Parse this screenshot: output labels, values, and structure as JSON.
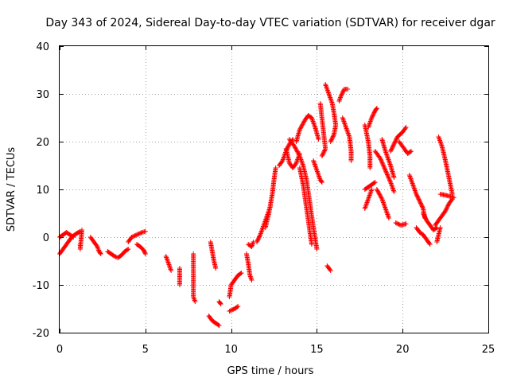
{
  "chart_data": {
    "type": "scatter",
    "title": "Day 343 of 2024, Sidereal Day-to-day VTEC variation (SDTVAR) for receiver dgar",
    "xlabel": "GPS time / hours",
    "ylabel": "SDTVAR / TECUs",
    "xlim": [
      0,
      25
    ],
    "ylim": [
      -20,
      40
    ],
    "xticks": [
      "0",
      "5",
      "10",
      "15",
      "20",
      "25"
    ],
    "yticks": [
      "-20",
      "-10",
      "0",
      "10",
      "20",
      "30",
      "40"
    ],
    "grid": true,
    "marker": "+",
    "colors": {
      "series": "#ff0000",
      "grid": "#a0a0a0",
      "axis": "#000000"
    },
    "series": [
      {
        "name": "SDTVAR",
        "segments": [
          [
            [
              0.0,
              -3.5
            ],
            [
              0.2,
              -2.5
            ],
            [
              0.4,
              -1.5
            ],
            [
              0.6,
              -0.5
            ],
            [
              0.8,
              0.3
            ],
            [
              1.0,
              0.8
            ],
            [
              1.2,
              1.2
            ]
          ],
          [
            [
              0.0,
              0.0
            ],
            [
              0.2,
              0.5
            ],
            [
              0.4,
              1.0
            ],
            [
              0.6,
              0.5
            ],
            [
              0.8,
              0.0
            ]
          ],
          [
            [
              1.2,
              -1.5
            ],
            [
              1.2,
              -2.5
            ],
            [
              1.3,
              1.5
            ]
          ],
          [
            [
              1.8,
              0.0
            ],
            [
              2.0,
              -1.0
            ],
            [
              2.2,
              -2.0
            ],
            [
              2.3,
              -3.0
            ],
            [
              2.4,
              -3.5
            ]
          ],
          [
            [
              2.8,
              -3.0
            ],
            [
              3.0,
              -3.5
            ],
            [
              3.2,
              -4.0
            ],
            [
              3.4,
              -4.3
            ],
            [
              3.6,
              -3.8
            ],
            [
              3.8,
              -3.0
            ],
            [
              4.0,
              -2.5
            ]
          ],
          [
            [
              4.0,
              -1.0
            ],
            [
              4.2,
              0.0
            ],
            [
              4.5,
              0.5
            ],
            [
              4.8,
              1.0
            ],
            [
              5.0,
              1.2
            ]
          ],
          [
            [
              4.5,
              -1.5
            ],
            [
              4.7,
              -2.0
            ],
            [
              4.9,
              -2.7
            ],
            [
              5.0,
              -3.5
            ]
          ],
          [
            [
              6.2,
              -4.0
            ],
            [
              6.3,
              -5.0
            ],
            [
              6.4,
              -6.0
            ],
            [
              6.5,
              -7.0
            ]
          ],
          [
            [
              7.0,
              -6.5
            ],
            [
              7.0,
              -10.0
            ]
          ],
          [
            [
              7.8,
              -3.5
            ],
            [
              7.8,
              -12.5
            ],
            [
              7.9,
              -13.5
            ]
          ],
          [
            [
              8.7,
              -16.5
            ],
            [
              8.9,
              -17.5
            ],
            [
              9.1,
              -18.0
            ],
            [
              9.3,
              -18.5
            ]
          ],
          [
            [
              8.8,
              -1.0
            ],
            [
              8.9,
              -3.0
            ],
            [
              9.0,
              -5.0
            ],
            [
              9.1,
              -6.5
            ]
          ],
          [
            [
              9.3,
              -13.5
            ],
            [
              9.4,
              -14.0
            ]
          ],
          [
            [
              9.9,
              -15.5
            ],
            [
              10.2,
              -15.0
            ],
            [
              10.4,
              -14.5
            ]
          ],
          [
            [
              9.9,
              -12.5
            ],
            [
              10.0,
              -10.0
            ],
            [
              10.2,
              -9.0
            ],
            [
              10.4,
              -8.0
            ],
            [
              10.6,
              -7.5
            ]
          ],
          [
            [
              10.9,
              -3.5
            ],
            [
              11.0,
              -5.5
            ],
            [
              11.1,
              -8.0
            ],
            [
              11.2,
              -9.0
            ]
          ],
          [
            [
              11.0,
              -1.5
            ],
            [
              11.2,
              -2.0
            ],
            [
              11.3,
              -1.0
            ]
          ],
          [
            [
              11.5,
              -1.0
            ],
            [
              11.7,
              0.5
            ],
            [
              11.9,
              2.5
            ],
            [
              12.1,
              4.5
            ],
            [
              12.3,
              6.5
            ]
          ],
          [
            [
              12.0,
              2.0
            ],
            [
              12.2,
              5.0
            ],
            [
              12.4,
              9.0
            ],
            [
              12.5,
              12.0
            ],
            [
              12.6,
              14.5
            ]
          ],
          [
            [
              12.8,
              15.0
            ],
            [
              13.0,
              16.0
            ],
            [
              13.2,
              18.0
            ],
            [
              13.4,
              19.5
            ],
            [
              13.6,
              20.5
            ]
          ],
          [
            [
              13.2,
              18.5
            ],
            [
              13.4,
              15.5
            ],
            [
              13.6,
              14.5
            ],
            [
              13.8,
              15.5
            ],
            [
              14.0,
              17.5
            ]
          ],
          [
            [
              13.4,
              20.5
            ],
            [
              13.7,
              19.0
            ],
            [
              14.0,
              17.0
            ],
            [
              14.2,
              15.0
            ],
            [
              14.4,
              12.0
            ],
            [
              14.6,
              7.0
            ],
            [
              14.8,
              2.0
            ],
            [
              15.0,
              -2.5
            ]
          ],
          [
            [
              14.0,
              14.5
            ],
            [
              14.2,
              11.0
            ],
            [
              14.4,
              6.0
            ],
            [
              14.6,
              1.0
            ],
            [
              14.7,
              -1.5
            ]
          ],
          [
            [
              13.8,
              20.0
            ],
            [
              14.0,
              22.5
            ],
            [
              14.3,
              24.5
            ],
            [
              14.5,
              25.5
            ],
            [
              14.7,
              25.0
            ],
            [
              14.9,
              23.0
            ],
            [
              15.1,
              20.5
            ]
          ],
          [
            [
              14.8,
              16.0
            ],
            [
              15.0,
              14.0
            ],
            [
              15.2,
              12.0
            ],
            [
              15.3,
              11.5
            ]
          ],
          [
            [
              15.3,
              17.0
            ],
            [
              15.5,
              18.5
            ],
            [
              15.2,
              28.0
            ]
          ],
          [
            [
              15.5,
              32.0
            ],
            [
              15.7,
              30.0
            ],
            [
              15.9,
              28.0
            ],
            [
              16.0,
              26.0
            ],
            [
              16.1,
              23.5
            ],
            [
              16.0,
              21.5
            ],
            [
              15.8,
              20.0
            ]
          ],
          [
            [
              15.6,
              -6.0
            ],
            [
              15.8,
              -7.0
            ]
          ],
          [
            [
              16.3,
              28.5
            ],
            [
              16.4,
              29.5
            ],
            [
              16.6,
              31.0
            ],
            [
              16.8,
              31.0
            ]
          ],
          [
            [
              16.5,
              25.0
            ],
            [
              16.7,
              23.0
            ],
            [
              16.9,
              21.0
            ],
            [
              17.0,
              18.0
            ],
            [
              17.0,
              16.0
            ]
          ],
          [
            [
              17.8,
              23.5
            ],
            [
              18.0,
              20.0
            ],
            [
              18.1,
              17.0
            ],
            [
              18.1,
              14.5
            ]
          ],
          [
            [
              17.8,
              10.0
            ],
            [
              18.0,
              10.5
            ],
            [
              18.2,
              11.0
            ],
            [
              18.4,
              11.5
            ]
          ],
          [
            [
              18.0,
              23.0
            ],
            [
              18.2,
              25.0
            ],
            [
              18.4,
              26.5
            ],
            [
              18.5,
              27.0
            ]
          ],
          [
            [
              17.8,
              6.0
            ],
            [
              18.0,
              8.0
            ],
            [
              18.2,
              10.0
            ]
          ],
          [
            [
              18.5,
              10.0
            ],
            [
              18.8,
              8.0
            ],
            [
              19.0,
              6.0
            ],
            [
              19.2,
              4.0
            ]
          ],
          [
            [
              18.4,
              18.0
            ],
            [
              18.7,
              16.5
            ],
            [
              19.0,
              14.0
            ],
            [
              19.3,
              11.5
            ],
            [
              19.5,
              9.5
            ]
          ],
          [
            [
              18.8,
              20.5
            ],
            [
              19.0,
              18.0
            ],
            [
              19.3,
              15.0
            ],
            [
              19.5,
              12.5
            ]
          ],
          [
            [
              19.3,
              18.0
            ],
            [
              19.5,
              19.5
            ],
            [
              19.7,
              21.0
            ],
            [
              20.0,
              22.0
            ],
            [
              20.2,
              23.0
            ]
          ],
          [
            [
              19.8,
              20.0
            ],
            [
              20.1,
              18.5
            ],
            [
              20.3,
              17.5
            ],
            [
              20.5,
              18.0
            ]
          ],
          [
            [
              19.6,
              3.0
            ],
            [
              19.9,
              2.5
            ],
            [
              20.2,
              2.8
            ]
          ],
          [
            [
              20.4,
              13.0
            ],
            [
              20.6,
              11.0
            ],
            [
              20.8,
              9.0
            ],
            [
              21.0,
              7.5
            ],
            [
              21.2,
              6.0
            ],
            [
              21.3,
              4.0
            ]
          ],
          [
            [
              20.8,
              2.0
            ],
            [
              21.0,
              1.0
            ],
            [
              21.2,
              0.5
            ],
            [
              21.4,
              -0.5
            ],
            [
              21.6,
              -1.5
            ]
          ],
          [
            [
              21.2,
              5.0
            ],
            [
              21.4,
              3.5
            ],
            [
              21.6,
              2.5
            ],
            [
              21.8,
              1.5
            ],
            [
              22.0,
              2.0
            ]
          ],
          [
            [
              21.9,
              2.5
            ],
            [
              22.1,
              3.5
            ],
            [
              22.3,
              4.5
            ],
            [
              22.5,
              5.5
            ],
            [
              22.7,
              7.0
            ],
            [
              22.9,
              8.0
            ]
          ],
          [
            [
              22.1,
              21.0
            ],
            [
              22.3,
              19.0
            ],
            [
              22.5,
              16.0
            ],
            [
              22.7,
              12.5
            ],
            [
              22.9,
              9.0
            ]
          ],
          [
            [
              22.2,
              9.0
            ],
            [
              22.5,
              8.8
            ],
            [
              22.8,
              8.5
            ],
            [
              23.0,
              8.3
            ]
          ],
          [
            [
              22.0,
              -1.0
            ],
            [
              22.2,
              2.0
            ]
          ]
        ]
      }
    ]
  }
}
